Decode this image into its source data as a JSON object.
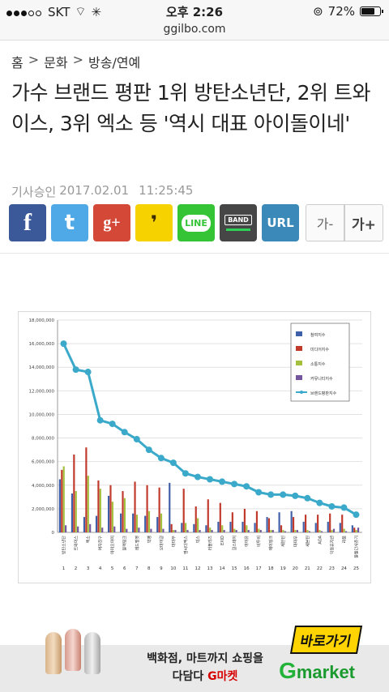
{
  "status": {
    "carrier": "SKT",
    "time": "오후 2:26",
    "battery": "72%"
  },
  "url": "ggilbo.com",
  "breadcrumb": [
    "홈",
    "문화",
    "방송/연예"
  ],
  "headline": "가수 브랜드 평판 1위 방탄소년단, 2위 트와이스, 3위 엑소 등 '역시 대표 아이돌이네'",
  "meta": {
    "label": "기사승인",
    "date": "2017.02.01",
    "time": "11:25:45"
  },
  "share": {
    "facebook": "f",
    "twitter": "t",
    "googleplus": "g+",
    "kakaostory": "❜",
    "line": "LINE",
    "band": "BAND",
    "url": "URL",
    "font_minus": "가-",
    "font_plus": "가+"
  },
  "chart_data": {
    "type": "bar",
    "ylim": [
      0,
      18000000
    ],
    "yticks": [
      "0",
      "2,000,000",
      "4,000,000",
      "6,000,000",
      "8,000,000",
      "10,000,000",
      "12,000,000",
      "14,000,000",
      "16,000,000",
      "18,000,000"
    ],
    "categories": [
      "방탄소년단",
      "트와이스",
      "엑소",
      "여자친구",
      "아이오아이",
      "블랙핑크",
      "레드벨벳",
      "빅뱅",
      "오마이걸",
      "마마무",
      "엠씨더맥스",
      "빅스",
      "러블리즈",
      "EXID",
      "걸스데이",
      "아이유",
      "비투비",
      "에이핑크",
      "세븐틴",
      "마마무",
      "세븐틴",
      "AOA",
      "악동뮤지션",
      "라붐",
      "볼빨간사춘기"
    ],
    "x_numbers": [
      "1",
      "2",
      "3",
      "4",
      "5",
      "6",
      "7",
      "8",
      "9",
      "10",
      "11",
      "12",
      "13",
      "14",
      "15",
      "16",
      "17",
      "18",
      "19",
      "20",
      "21",
      "22",
      "23",
      "24",
      "25"
    ],
    "series": [
      {
        "name": "참여지수",
        "color": "#3f5fa8",
        "values": [
          4500000,
          3300000,
          1300000,
          1400000,
          3100000,
          1600000,
          1600000,
          1400000,
          1300000,
          4200000,
          800000,
          700000,
          600000,
          900000,
          900000,
          900000,
          800000,
          1300000,
          1700000,
          1800000,
          900000,
          800000,
          900000,
          800000,
          600000
        ]
      },
      {
        "name": "미디어지수",
        "color": "#c0392b",
        "values": [
          5300000,
          6600000,
          7200000,
          4400000,
          4000000,
          3500000,
          4300000,
          4000000,
          3800000,
          700000,
          3700000,
          2200000,
          2800000,
          2500000,
          1700000,
          2000000,
          1800000,
          1200000,
          600000,
          1300000,
          1500000,
          1500000,
          1600000,
          1500000,
          400000
        ]
      },
      {
        "name": "소통지수",
        "color": "#a3bf3c",
        "values": [
          5600000,
          3500000,
          4800000,
          3700000,
          2600000,
          2900000,
          1500000,
          1800000,
          1600000,
          200000,
          800000,
          1200000,
          400000,
          600000,
          300000,
          600000,
          300000,
          200000,
          200000,
          200000,
          200000,
          200000,
          200000,
          300000,
          200000
        ]
      },
      {
        "name": "커뮤니티지수",
        "color": "#7355a0",
        "values": [
          600000,
          500000,
          700000,
          400000,
          500000,
          300000,
          400000,
          300000,
          300000,
          200000,
          200000,
          200000,
          200000,
          200000,
          200000,
          200000,
          200000,
          200000,
          100000,
          200000,
          100000,
          100000,
          300000,
          100000,
          400000
        ]
      },
      {
        "name": "브랜드평판지수",
        "color": "#3ba9c9",
        "type": "line",
        "values": [
          16000000,
          13800000,
          13600000,
          9500000,
          9200000,
          8500000,
          7900000,
          7000000,
          6300000,
          5900000,
          5000000,
          4700000,
          4500000,
          4300000,
          4100000,
          3900000,
          3400000,
          3200000,
          3200000,
          3100000,
          2900000,
          2500000,
          2200000,
          2100000,
          1500000
        ]
      }
    ]
  },
  "ad": {
    "line1": "백화점, 마트까지 쇼핑을",
    "line2_prefix": "다담다 ",
    "line2_highlight": "G마켓",
    "cta": "바로가기",
    "logo": "market",
    "logo_g": "G"
  }
}
